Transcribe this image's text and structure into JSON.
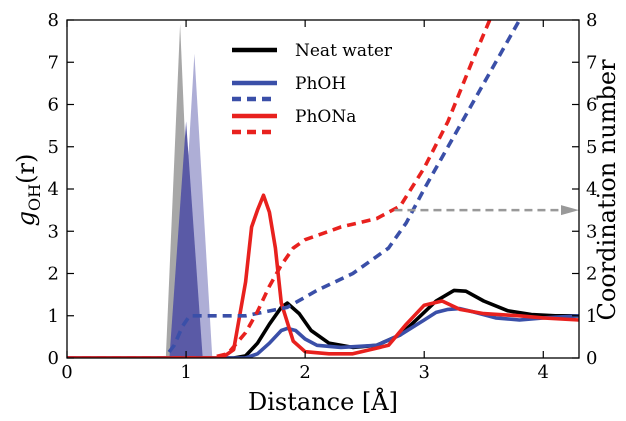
{
  "chart_data": {
    "type": "line",
    "xlabel": "Distance [Å]",
    "ylabel": "g_OH(r)",
    "ylabel_parts": {
      "base": "g",
      "sub": "OH",
      "tail": "(r)"
    },
    "y2label": "Coordination number",
    "xlim": [
      0,
      4.3
    ],
    "ylim": [
      0,
      8
    ],
    "y2lim": [
      0,
      8
    ],
    "xticks": [
      "0",
      "1",
      "2",
      "3",
      "4"
    ],
    "yticks": [
      "0",
      "1",
      "2",
      "3",
      "4",
      "5",
      "6",
      "7",
      "8"
    ],
    "y2ticks": [
      "0",
      "1",
      "2",
      "3",
      "4",
      "5",
      "6",
      "7",
      "8"
    ],
    "grid": false,
    "legend_position": "top-center",
    "legend": [
      {
        "label": "Neat water",
        "color": "#000000",
        "solid": true,
        "dashed": false
      },
      {
        "label": "PhOH",
        "color": "#3a4fa8",
        "solid": true,
        "dashed": true
      },
      {
        "label": "PhONa",
        "color": "#e8211e",
        "solid": true,
        "dashed": true
      }
    ],
    "series": [
      {
        "name": "Neat water",
        "kind": "rdf",
        "color": "#000000",
        "x": [
          0,
          1.4,
          1.5,
          1.6,
          1.7,
          1.8,
          1.85,
          1.95,
          2.05,
          2.2,
          2.4,
          2.6,
          2.8,
          2.95,
          3.1,
          3.25,
          3.35,
          3.5,
          3.7,
          3.9,
          4.1,
          4.3
        ],
        "y": [
          0,
          0,
          0.05,
          0.35,
          0.8,
          1.2,
          1.3,
          1.05,
          0.65,
          0.35,
          0.25,
          0.3,
          0.55,
          0.95,
          1.35,
          1.6,
          1.58,
          1.35,
          1.12,
          1.03,
          1.0,
          1.0
        ]
      },
      {
        "name": "PhOH",
        "kind": "rdf",
        "color": "#3a4fa8",
        "x": [
          0,
          1.5,
          1.6,
          1.7,
          1.8,
          1.85,
          1.92,
          2.0,
          2.1,
          2.3,
          2.6,
          2.8,
          3.0,
          3.1,
          3.2,
          3.3,
          3.4,
          3.6,
          3.8,
          4.0,
          4.3
        ],
        "y": [
          0,
          0,
          0.1,
          0.35,
          0.65,
          0.7,
          0.65,
          0.45,
          0.3,
          0.25,
          0.3,
          0.55,
          0.9,
          1.08,
          1.15,
          1.17,
          1.1,
          0.95,
          0.9,
          0.95,
          1.0
        ]
      },
      {
        "name": "PhONa",
        "kind": "rdf",
        "color": "#e8211e",
        "x": [
          0,
          1.3,
          1.4,
          1.5,
          1.55,
          1.6,
          1.65,
          1.7,
          1.75,
          1.8,
          1.9,
          2.0,
          2.2,
          2.4,
          2.7,
          2.85,
          3.0,
          3.15,
          3.3,
          3.5,
          3.8,
          4.0,
          4.3
        ],
        "y": [
          0,
          0,
          0.2,
          1.8,
          3.1,
          3.5,
          3.85,
          3.45,
          2.6,
          1.3,
          0.4,
          0.15,
          0.1,
          0.1,
          0.3,
          0.8,
          1.25,
          1.35,
          1.15,
          1.05,
          1.0,
          0.95,
          0.9
        ]
      },
      {
        "name": "PhOH coordination",
        "kind": "cn",
        "color": "#3a4fa8",
        "x": [
          0,
          0.82,
          0.9,
          0.97,
          1.03,
          1.5,
          1.85,
          2.1,
          2.4,
          2.7,
          2.85,
          3.0,
          3.2,
          3.4,
          3.6,
          3.8
        ],
        "y": [
          0,
          0,
          0.3,
          0.75,
          1.0,
          1.0,
          1.2,
          1.6,
          2.0,
          2.6,
          3.2,
          4.0,
          5.0,
          6.0,
          7.0,
          8.0
        ]
      },
      {
        "name": "PhONa coordination",
        "kind": "cn",
        "color": "#e8211e",
        "x": [
          0,
          1.2,
          1.35,
          1.5,
          1.6,
          1.7,
          1.8,
          1.9,
          2.0,
          2.3,
          2.6,
          2.8,
          3.0,
          3.2,
          3.4,
          3.55
        ],
        "y": [
          0,
          0,
          0.1,
          0.6,
          1.1,
          1.7,
          2.2,
          2.6,
          2.8,
          3.1,
          3.3,
          3.6,
          4.5,
          5.6,
          7.0,
          8.0
        ]
      }
    ],
    "filled_peaks": [
      {
        "name": "gray-peak",
        "color": "#a7a7a7",
        "x": [
          0.83,
          0.95,
          1.07
        ],
        "y": [
          0,
          7.9,
          0
        ]
      },
      {
        "name": "lavender-peak",
        "color": "#aeaed6",
        "x": [
          0.92,
          1.07,
          1.22
        ],
        "y": [
          0,
          7.2,
          0
        ]
      },
      {
        "name": "indigo-peak",
        "color": "#5a5aa6",
        "x": [
          0.86,
          1.0,
          1.14
        ],
        "y": [
          0,
          5.6,
          0
        ]
      }
    ],
    "annotation_arrow": {
      "color": "#999999",
      "x_start": 2.75,
      "x_end": 4.3,
      "y": 3.5,
      "axis": "right"
    }
  }
}
